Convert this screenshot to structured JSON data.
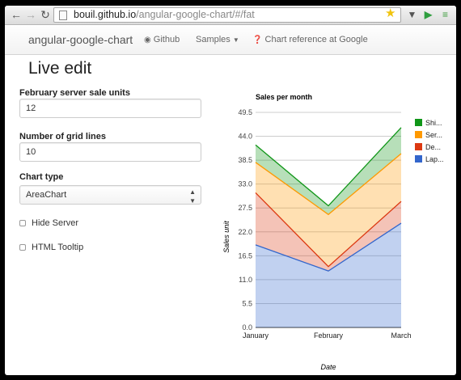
{
  "browser": {
    "url_host": "bouil.github.io",
    "url_path": "/angular-google-chart/#/fat",
    "back_icon": "arrow-left",
    "forward_icon": "arrow-right",
    "reload_icon": "reload"
  },
  "navbar": {
    "brand": "angular-google-chart",
    "github": "Github",
    "samples": "Samples",
    "chart_reference": "Chart reference at Google"
  },
  "page": {
    "title": "Live edit"
  },
  "form": {
    "feb_label": "February server sale units",
    "feb_value": "12",
    "grid_label": "Number of grid lines",
    "grid_value": "10",
    "type_label": "Chart type",
    "type_value": "AreaChart",
    "hide_server_label": "Hide Server",
    "hide_server_checked": false,
    "html_tooltip_label": "HTML Tooltip",
    "html_tooltip_checked": false
  },
  "colors": {
    "shirts": "#109618",
    "server": "#ff9900",
    "desktop": "#dc3912",
    "laptop": "#3366cc"
  },
  "chart_data": {
    "type": "area",
    "stacked": true,
    "title": "Sales per month",
    "xlabel": "Date",
    "ylabel": "Sales unit",
    "categories": [
      "January",
      "February",
      "March"
    ],
    "ylim": [
      0,
      49.5
    ],
    "yticks": [
      "0.0",
      "5.5",
      "11.0",
      "16.5",
      "22.0",
      "27.5",
      "33.0",
      "38.5",
      "44.0",
      "49.5"
    ],
    "legend_position": "right",
    "series": [
      {
        "name": "Lap...",
        "values": [
          19,
          13,
          24
        ]
      },
      {
        "name": "De...",
        "values": [
          12,
          1,
          5
        ]
      },
      {
        "name": "Ser...",
        "values": [
          7,
          12,
          11
        ]
      },
      {
        "name": "Shi...",
        "values": [
          4,
          2,
          6
        ]
      }
    ],
    "legend_order": [
      "Shi...",
      "Ser...",
      "De...",
      "Lap..."
    ]
  }
}
